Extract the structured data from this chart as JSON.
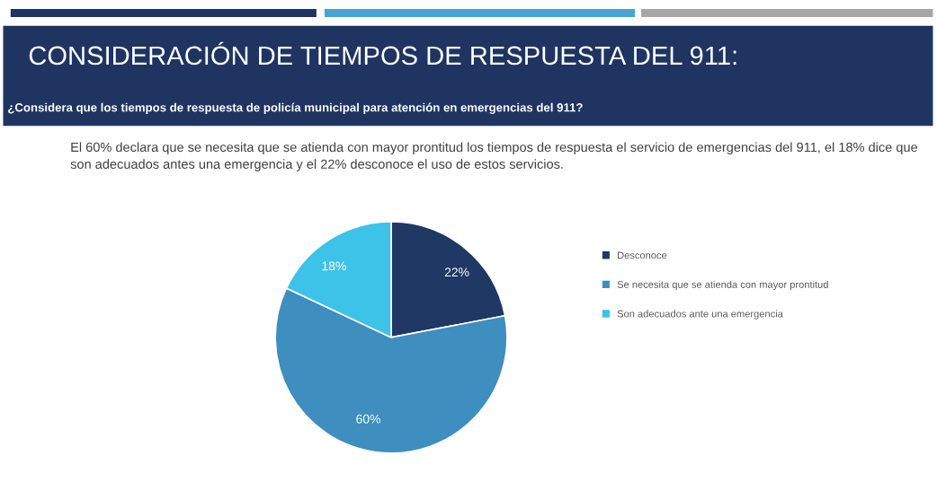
{
  "chart_data": {
    "type": "pie",
    "title": "CONSIDERACIÓN DE TIEMPOS DE RESPUESTA DEL 911:",
    "subtitle": "¿Considera que los tiempos de respuesta de policía municipal para atención en emergencias del 911?",
    "annotations": [
      "El 60% declara que se necesita que se atienda con mayor prontitud los tiempos de respuesta el servicio de emergencias del 911, el 18% dice que son adecuados antes una emergencia y el 22% desconoce el uso de estos servicios."
    ],
    "categories": [
      "Desconoce",
      "Se necesita que se atienda con mayor prontitud",
      "Son adecuados ante una emergencia"
    ],
    "values": [
      22,
      60,
      18
    ],
    "colors": [
      "#1f3864",
      "#3e8ebf",
      "#3ec3e8"
    ],
    "value_labels": [
      "22%",
      "60%",
      "18%"
    ],
    "legend": "right"
  }
}
